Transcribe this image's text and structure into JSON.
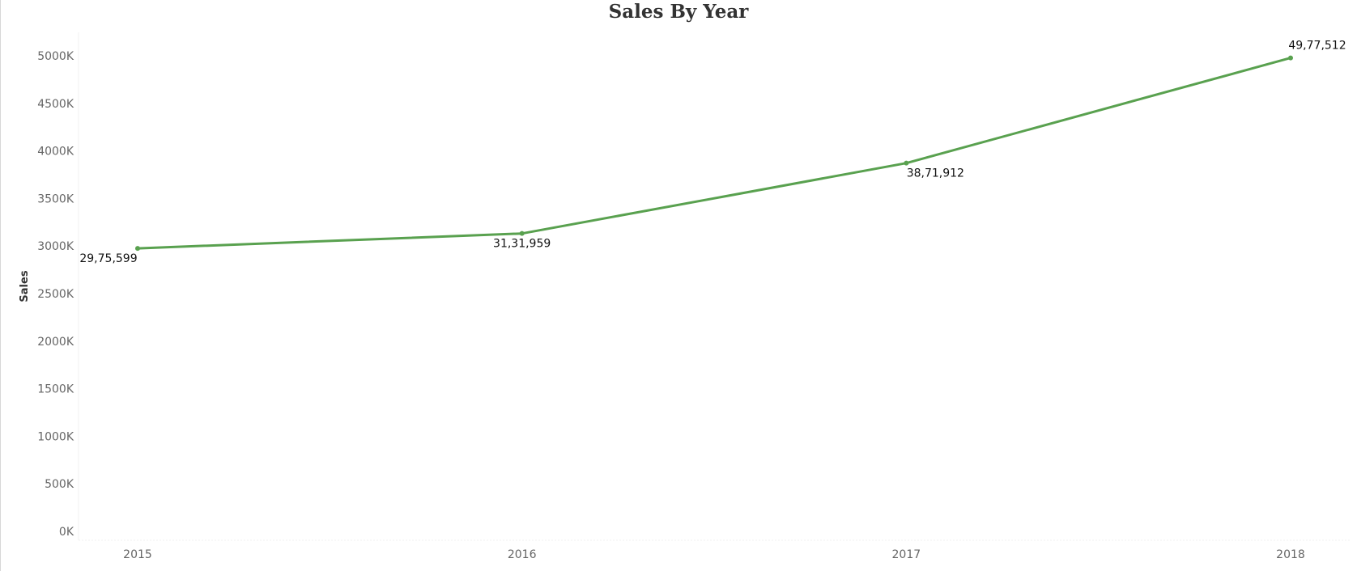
{
  "chart_data": {
    "type": "line",
    "title": "Sales By Year",
    "xlabel": "",
    "ylabel": "Sales",
    "categories": [
      "2015",
      "2016",
      "2017",
      "2018"
    ],
    "series": [
      {
        "values": [
          2975599,
          3131959,
          3871912,
          4977512
        ],
        "data_labels": [
          "29,75,599",
          "31,31,959",
          "38,71,912",
          "49,77,512"
        ],
        "color": "#59a14f"
      }
    ],
    "ylim": [
      0,
      5200000
    ],
    "y_ticks": [
      0,
      500000,
      1000000,
      1500000,
      2000000,
      2500000,
      3000000,
      3500000,
      4000000,
      4500000,
      5000000
    ],
    "y_tick_labels": [
      "0K",
      "500K",
      "1000K",
      "1500K",
      "2000K",
      "2500K",
      "3000K",
      "3500K",
      "4000K",
      "4500K",
      "5000K"
    ],
    "grid": false,
    "legend": "none"
  }
}
